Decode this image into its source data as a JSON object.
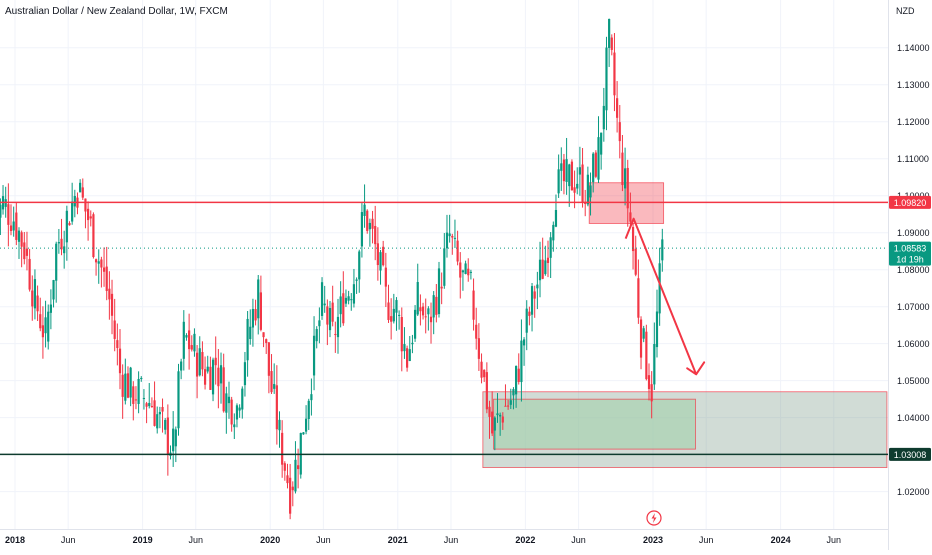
{
  "header": {
    "title": "Australian Dollar / New Zealand Dollar, 1W, FXCM"
  },
  "chart_data": {
    "type": "candlestick",
    "symbol": "AUDNZD",
    "interval": "1W",
    "source": "FXCM",
    "currency": "NZD",
    "y_ticks": [
      "1.14000",
      "1.13000",
      "1.12000",
      "1.11000",
      "1.10000",
      "1.09000",
      "1.08000",
      "1.07000",
      "1.06000",
      "1.05000",
      "1.04000",
      "1.02000"
    ],
    "y_range": [
      1.0145,
      1.1475
    ],
    "x_ticks": [
      "2018",
      "Jun",
      "2019",
      "Jun",
      "2020",
      "Jun",
      "2021",
      "Jun",
      "2022",
      "Jun",
      "2023",
      "Jun",
      "2024",
      "Jun"
    ],
    "levels": [
      {
        "name": "resistance",
        "value": 1.0982,
        "label": "1.09820",
        "color": "#f23645"
      },
      {
        "name": "support",
        "value": 1.03008,
        "label": "1.03008",
        "color": "#0e3b2e"
      }
    ],
    "last_price": {
      "value": 1.08583,
      "label": "1.08583",
      "countdown": "1d 19h",
      "color": "#089981"
    },
    "zones": [
      {
        "name": "supply-zone",
        "start": "2022-07",
        "end": "2023-02",
        "low": 1.0925,
        "high": 1.1035,
        "color": "#f23645"
      },
      {
        "name": "demand-zone",
        "start": "2021-09",
        "end": "2024-11",
        "low": 1.0265,
        "high": 1.047,
        "color": "#7a9b8a"
      },
      {
        "name": "demand-inner-zone",
        "start": "2021-10",
        "end": "2023-05",
        "low": 1.0315,
        "high": 1.045,
        "color": "#9fd0a8"
      }
    ],
    "projection": {
      "points": [
        [
          "2023-02",
          1.0938
        ],
        [
          "2023-06",
          1.0555
        ]
      ],
      "color": "#f23645"
    },
    "price_path": [
      [
        "2017-11",
        1.092
      ],
      [
        "2017-12",
        1.098
      ],
      [
        "2018-01",
        1.094
      ],
      [
        "2018-02",
        1.086
      ],
      [
        "2018-03",
        1.072
      ],
      [
        "2018-04",
        1.062
      ],
      [
        "2018-05",
        1.086
      ],
      [
        "2018-06",
        1.094
      ],
      [
        "2018-07",
        1.102
      ],
      [
        "2018-08",
        1.094
      ],
      [
        "2018-09",
        1.083
      ],
      [
        "2018-10",
        1.072
      ],
      [
        "2018-11",
        1.052
      ],
      [
        "2018-12",
        1.048
      ],
      [
        "2019-01",
        1.046
      ],
      [
        "2019-02",
        1.044
      ],
      [
        "2019-03",
        1.037
      ],
      [
        "2019-04",
        1.032
      ],
      [
        "2019-05",
        1.062
      ],
      [
        "2019-06",
        1.058
      ],
      [
        "2019-07",
        1.052
      ],
      [
        "2019-08",
        1.055
      ],
      [
        "2019-09",
        1.045
      ],
      [
        "2019-10",
        1.043
      ],
      [
        "2019-11",
        1.062
      ],
      [
        "2019-12",
        1.074
      ],
      [
        "2020-01",
        1.052
      ],
      [
        "2020-02",
        1.035
      ],
      [
        "2020-03",
        1.02
      ],
      [
        "2020-04",
        1.034
      ],
      [
        "2020-05",
        1.052
      ],
      [
        "2020-06",
        1.071
      ],
      [
        "2020-07",
        1.062
      ],
      [
        "2020-08",
        1.071
      ],
      [
        "2020-09",
        1.078
      ],
      [
        "2020-10",
        1.096
      ],
      [
        "2020-11",
        1.086
      ],
      [
        "2020-12",
        1.072
      ],
      [
        "2021-01",
        1.069
      ],
      [
        "2021-02",
        1.056
      ],
      [
        "2021-03",
        1.071
      ],
      [
        "2021-04",
        1.066
      ],
      [
        "2021-05",
        1.076
      ],
      [
        "2021-06",
        1.089
      ],
      [
        "2021-07",
        1.078
      ],
      [
        "2021-08",
        1.074
      ],
      [
        "2021-09",
        1.054
      ],
      [
        "2021-10",
        1.036
      ],
      [
        "2021-11",
        1.042
      ],
      [
        "2021-12",
        1.046
      ],
      [
        "2022-01",
        1.062
      ],
      [
        "2022-02",
        1.074
      ],
      [
        "2022-03",
        1.083
      ],
      [
        "2022-04",
        1.102
      ],
      [
        "2022-05",
        1.104
      ],
      [
        "2022-06",
        1.105
      ],
      [
        "2022-07",
        1.101
      ],
      [
        "2022-08",
        1.112
      ],
      [
        "2022-09",
        1.142
      ],
      [
        "2022-10",
        1.112
      ],
      [
        "2022-11",
        1.093
      ],
      [
        "2022-12",
        1.062
      ],
      [
        "2023-01",
        1.048
      ],
      [
        "2023-02",
        1.0858
      ]
    ]
  }
}
